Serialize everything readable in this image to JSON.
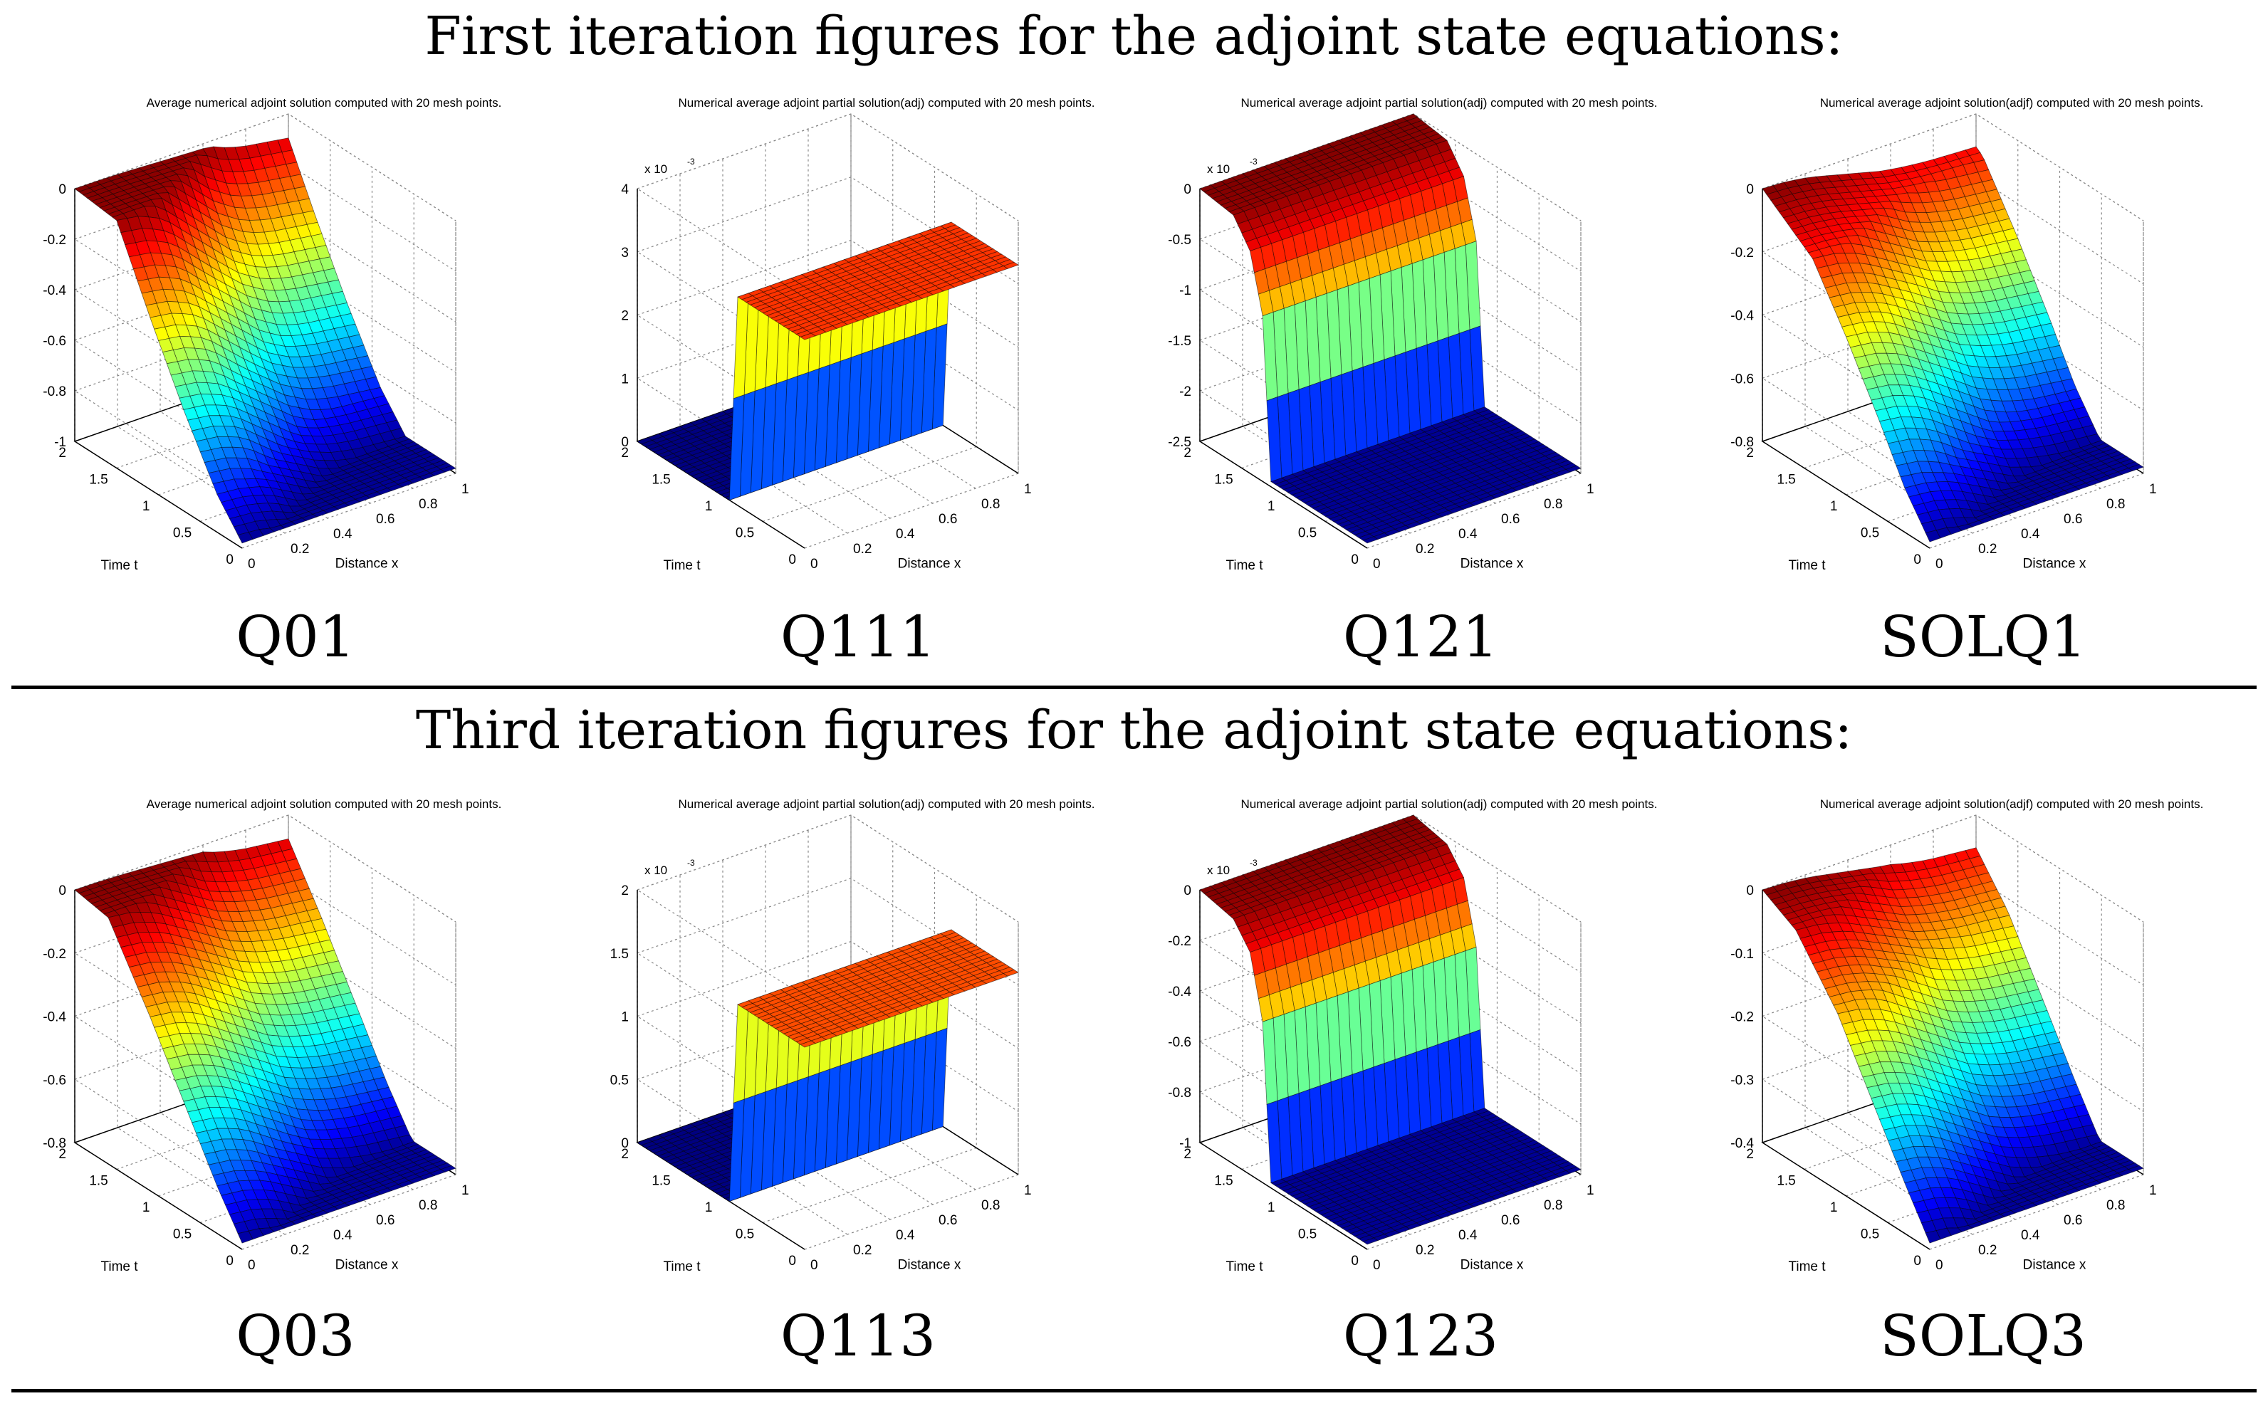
{
  "headings": {
    "first": "First iteration figures for the adjoint state equations:",
    "third": "Third iteration figures for the adjoint state equations:"
  },
  "chart_data": [
    {
      "type": "surface",
      "row": 0,
      "col": 0,
      "caption": "Q01",
      "title": "Average numerical adjoint solution computed with 20 mesh points.",
      "xlabel": "Distance x",
      "ylabel": "Time t",
      "scale_label": "",
      "x_ticks": [
        "0",
        "0.2",
        "0.4",
        "0.6",
        "0.8",
        "1"
      ],
      "y_ticks": [
        "0",
        "0.5",
        "1",
        "1.5",
        "2"
      ],
      "z_ticks": [
        "-1",
        "-0.8",
        "-0.6",
        "-0.4",
        "-0.2",
        "0"
      ],
      "zlim": [
        -1,
        0
      ],
      "profile": [
        [
          0,
          0
        ],
        [
          0.25,
          -0.02
        ],
        [
          0.45,
          -0.32
        ],
        [
          0.65,
          -0.6
        ],
        [
          0.85,
          -0.85
        ],
        [
          1,
          -0.98
        ]
      ],
      "x_shape": [
        0,
        0.01,
        0.04,
        0.1,
        0.16,
        0.22,
        0.26,
        0.28,
        0.29,
        0.3
      ],
      "colormap": "jet"
    },
    {
      "type": "surface",
      "row": 0,
      "col": 1,
      "caption": "Q111",
      "title": "Numerical average  adjoint partial solution(adj) computed with 20 mesh points.",
      "xlabel": "Distance x",
      "ylabel": "Time t",
      "scale_label": "x 10",
      "scale_exp": "-3",
      "x_ticks": [
        "0",
        "0.2",
        "0.4",
        "0.6",
        "0.8",
        "1"
      ],
      "y_ticks": [
        "0",
        "0.5",
        "1",
        "1.5",
        "2"
      ],
      "z_ticks": [
        "0",
        "1",
        "2",
        "3",
        "4"
      ],
      "zlim": [
        0,
        4
      ],
      "profile": [
        [
          0,
          0
        ],
        [
          0.55,
          0
        ],
        [
          0.6,
          3.3
        ],
        [
          1,
          3.3
        ]
      ],
      "x_shape": [
        0,
        0,
        0,
        0,
        0,
        0,
        0,
        0,
        0,
        0
      ],
      "colormap": "jet"
    },
    {
      "type": "surface",
      "row": 0,
      "col": 2,
      "caption": "Q121",
      "title": "Numerical average  adjoint partial solution(adj) computed with 20 mesh points.",
      "xlabel": "Distance x",
      "ylabel": "Time t",
      "scale_label": "x 10",
      "scale_exp": "-3",
      "x_ticks": [
        "0",
        "0.2",
        "0.4",
        "0.6",
        "0.8",
        "1"
      ],
      "y_ticks": [
        "0",
        "0.5",
        "1",
        "1.5",
        "2"
      ],
      "z_ticks": [
        "-2.5",
        "-2",
        "-1.5",
        "-1",
        "-0.5",
        "0"
      ],
      "zlim": [
        -2.5,
        0
      ],
      "profile": [
        [
          0,
          0
        ],
        [
          0.2,
          -0.05
        ],
        [
          0.3,
          -0.3
        ],
        [
          0.38,
          -0.9
        ],
        [
          0.42,
          -2.45
        ],
        [
          1,
          -2.45
        ]
      ],
      "x_shape": [
        0,
        0,
        0,
        0,
        0,
        0,
        0,
        0,
        0,
        0
      ],
      "colormap": "jet"
    },
    {
      "type": "surface",
      "row": 0,
      "col": 3,
      "caption": "SOLQ1",
      "title": "Numerical average adjoint  solution(adjf) computed with 20 mesh points.",
      "xlabel": "Distance x",
      "ylabel": "Time t",
      "scale_label": "",
      "x_ticks": [
        "0",
        "0.2",
        "0.4",
        "0.6",
        "0.8",
        "1"
      ],
      "y_ticks": [
        "0",
        "0.5",
        "1",
        "1.5",
        "2"
      ],
      "z_ticks": [
        "-0.8",
        "-0.6",
        "-0.4",
        "-0.2",
        "0"
      ],
      "zlim": [
        -0.8,
        0
      ],
      "profile": [
        [
          0,
          0
        ],
        [
          0.3,
          -0.12
        ],
        [
          0.5,
          -0.3
        ],
        [
          0.7,
          -0.5
        ],
        [
          0.85,
          -0.66
        ],
        [
          1,
          -0.78
        ]
      ],
      "x_shape": [
        0,
        0.01,
        0.04,
        0.09,
        0.14,
        0.19,
        0.22,
        0.24,
        0.25,
        0.26
      ],
      "colormap": "jet"
    },
    {
      "type": "surface",
      "row": 1,
      "col": 0,
      "caption": "Q03",
      "title": "Average numerical adjoint solution computed with 20 mesh points.",
      "xlabel": "Distance x",
      "ylabel": "Time t",
      "scale_label": "",
      "x_ticks": [
        "0",
        "0.2",
        "0.4",
        "0.6",
        "0.8",
        "1"
      ],
      "y_ticks": [
        "0",
        "0.5",
        "1",
        "1.5",
        "2"
      ],
      "z_ticks": [
        "-0.8",
        "-0.6",
        "-0.4",
        "-0.2",
        "0"
      ],
      "zlim": [
        -0.8,
        0
      ],
      "profile": [
        [
          0,
          0
        ],
        [
          0.2,
          -0.02
        ],
        [
          0.45,
          -0.25
        ],
        [
          0.65,
          -0.45
        ],
        [
          0.85,
          -0.65
        ],
        [
          1,
          -0.78
        ]
      ],
      "x_shape": [
        0,
        0.01,
        0.04,
        0.09,
        0.14,
        0.19,
        0.22,
        0.24,
        0.25,
        0.26
      ],
      "colormap": "jet"
    },
    {
      "type": "surface",
      "row": 1,
      "col": 1,
      "caption": "Q113",
      "title": "Numerical average  adjoint partial solution(adj) computed with 20 mesh points.",
      "xlabel": "Distance x",
      "ylabel": "Time t",
      "scale_label": "x 10",
      "scale_exp": "-3",
      "x_ticks": [
        "0",
        "0.2",
        "0.4",
        "0.6",
        "0.8",
        "1"
      ],
      "y_ticks": [
        "0",
        "0.5",
        "1",
        "1.5",
        "2"
      ],
      "z_ticks": [
        "0",
        "0.5",
        "1",
        "1.5",
        "2"
      ],
      "zlim": [
        0,
        2
      ],
      "profile": [
        [
          0,
          0
        ],
        [
          0.55,
          0
        ],
        [
          0.6,
          1.6
        ],
        [
          1,
          1.6
        ]
      ],
      "x_shape": [
        0,
        0,
        0,
        0,
        0,
        0,
        0,
        0,
        0,
        0
      ],
      "colormap": "jet"
    },
    {
      "type": "surface",
      "row": 1,
      "col": 2,
      "caption": "Q123",
      "title": "Numerical average  adjoint partial solution(adj) computed with 20 mesh points.",
      "xlabel": "Distance x",
      "ylabel": "Time t",
      "scale_label": "x 10",
      "scale_exp": "-3",
      "x_ticks": [
        "0",
        "0.2",
        "0.4",
        "0.6",
        "0.8",
        "1"
      ],
      "y_ticks": [
        "0",
        "0.5",
        "1",
        "1.5",
        "2"
      ],
      "z_ticks": [
        "-1",
        "-0.8",
        "-0.6",
        "-0.4",
        "-0.2",
        "0"
      ],
      "zlim": [
        -1,
        0
      ],
      "profile": [
        [
          0,
          0
        ],
        [
          0.2,
          -0.03
        ],
        [
          0.3,
          -0.12
        ],
        [
          0.38,
          -0.38
        ],
        [
          0.42,
          -0.98
        ],
        [
          1,
          -0.98
        ]
      ],
      "x_shape": [
        0,
        0,
        0,
        0,
        0,
        0,
        0,
        0,
        0,
        0
      ],
      "colormap": "jet"
    },
    {
      "type": "surface",
      "row": 1,
      "col": 3,
      "caption": "SOLQ3",
      "title": "Numerical average adjoint  solution(adjf) computed with 20 mesh points.",
      "xlabel": "Distance x",
      "ylabel": "Time t",
      "scale_label": "",
      "x_ticks": [
        "0",
        "0.2",
        "0.4",
        "0.6",
        "0.8",
        "1"
      ],
      "y_ticks": [
        "0",
        "0.5",
        "1",
        "1.5",
        "2"
      ],
      "z_ticks": [
        "-0.4",
        "-0.3",
        "-0.2",
        "-0.1",
        "0"
      ],
      "zlim": [
        -0.4,
        0
      ],
      "profile": [
        [
          0,
          0
        ],
        [
          0.2,
          -0.03
        ],
        [
          0.45,
          -0.12
        ],
        [
          0.65,
          -0.22
        ],
        [
          0.85,
          -0.32
        ],
        [
          1,
          -0.39
        ]
      ],
      "x_shape": [
        0,
        0.01,
        0.04,
        0.09,
        0.14,
        0.19,
        0.22,
        0.24,
        0.25,
        0.26
      ],
      "colormap": "jet"
    }
  ]
}
